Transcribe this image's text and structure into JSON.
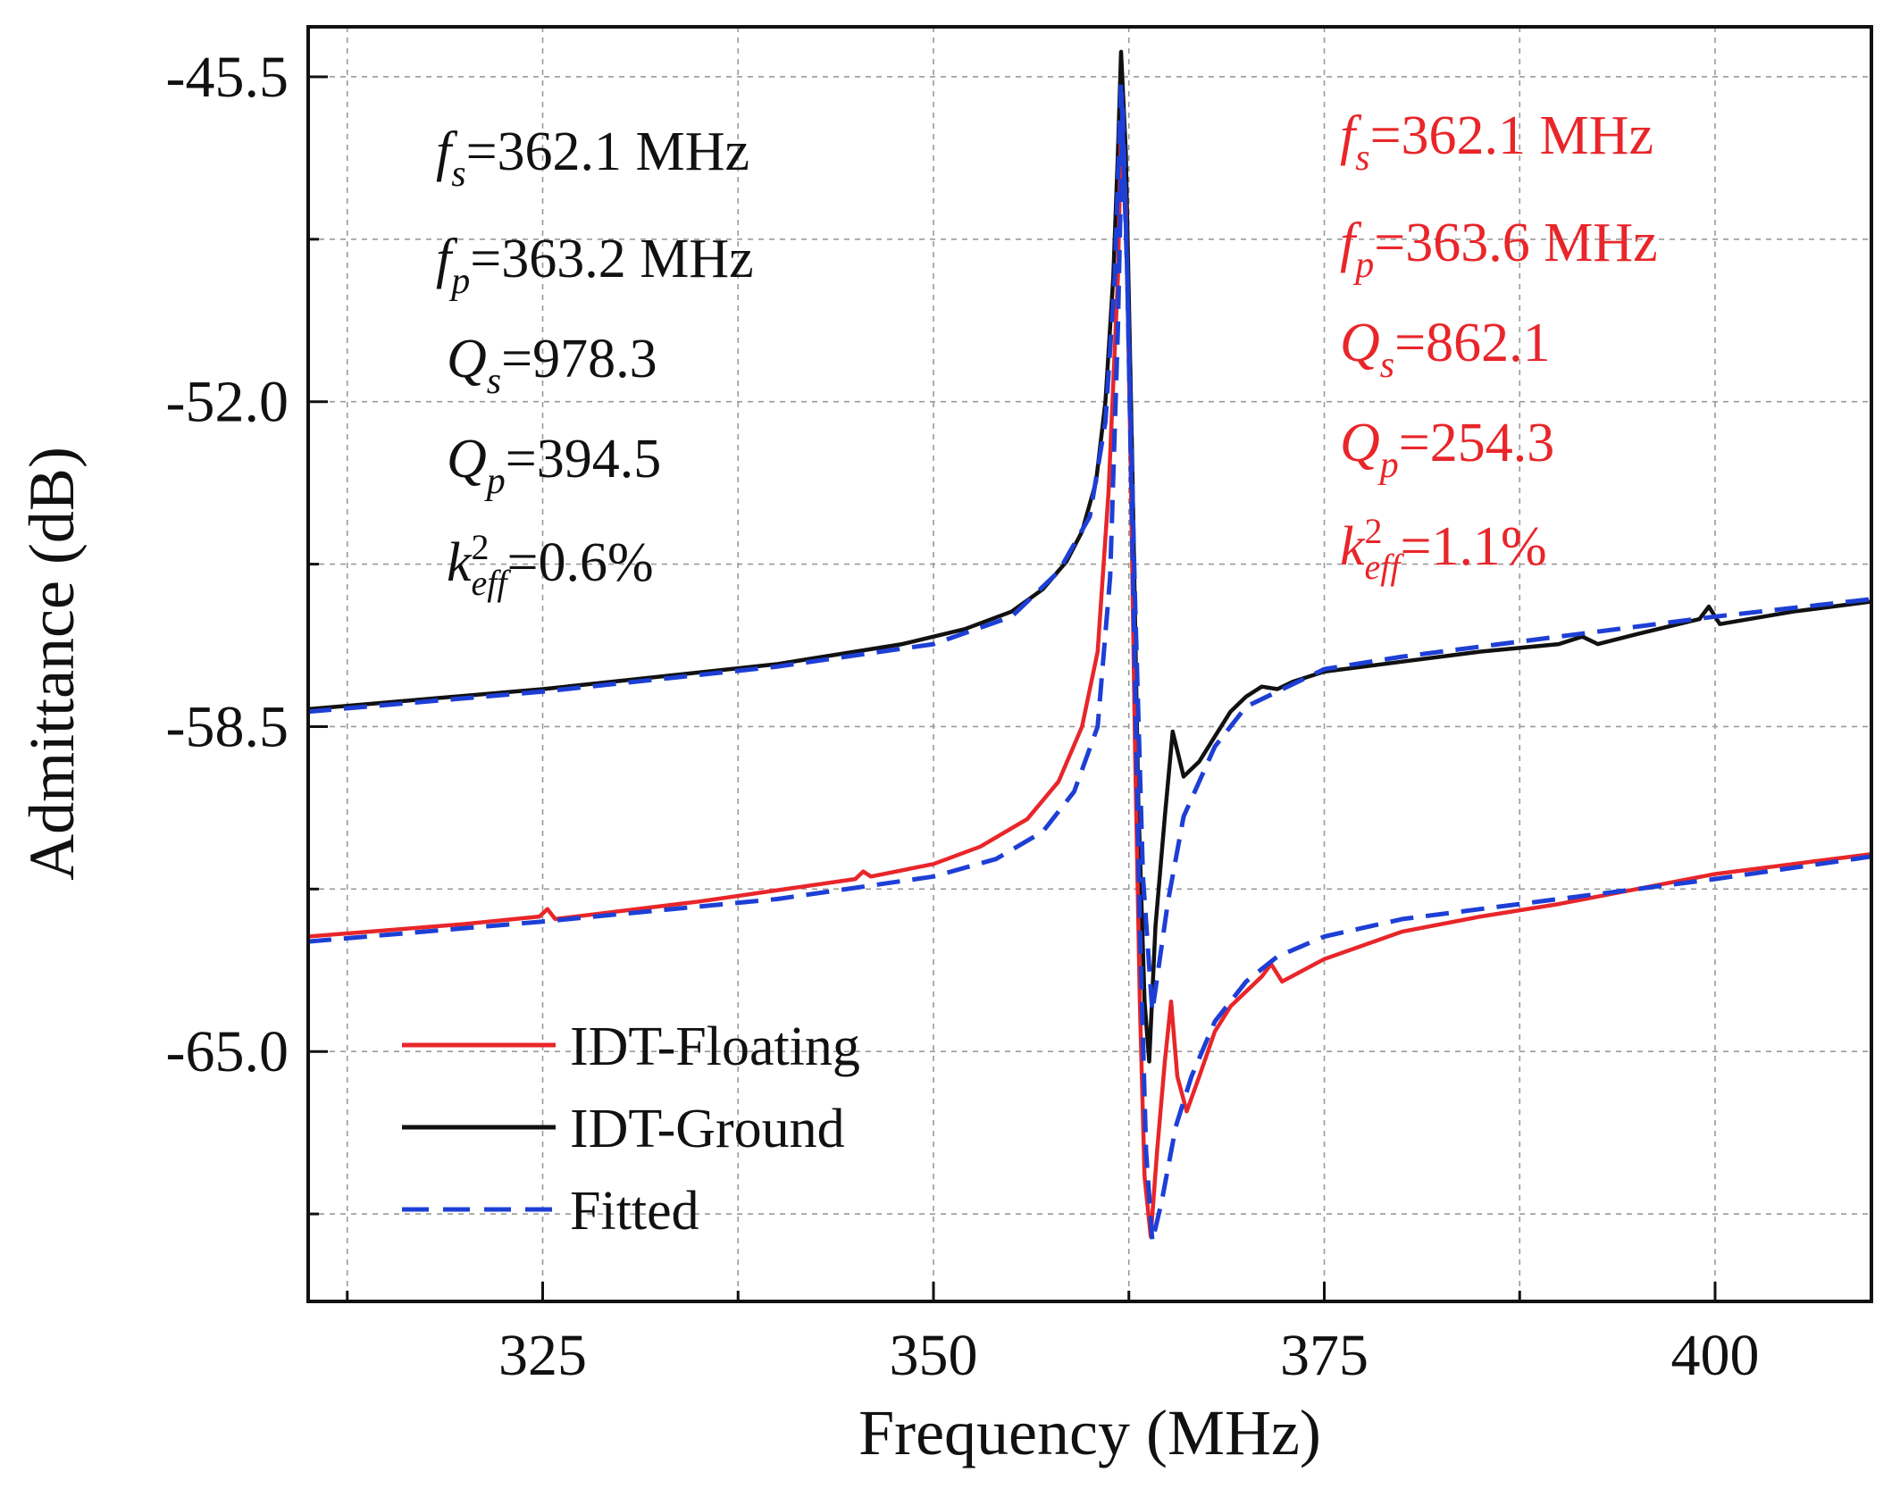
{
  "chart_data": {
    "type": "line",
    "xlabel": "Frequency (MHz)",
    "ylabel": "Admittance (dB)",
    "xlim": [
      310,
      410
    ],
    "ylim": [
      -70.0,
      -44.5
    ],
    "xticks": [
      325,
      350,
      375,
      400
    ],
    "yticks": [
      -45.5,
      -52.0,
      -58.5,
      -65.0
    ],
    "grid": true,
    "legend_position": "bottom-left",
    "colors": {
      "floating": "#e8262a",
      "ground": "#111111",
      "fitted": "#1d3fd6"
    },
    "series": [
      {
        "name": "IDT-Ground",
        "style": "solid",
        "color": "#111111",
        "points": [
          [
            310,
            -58.15
          ],
          [
            325,
            -57.75
          ],
          [
            340,
            -57.25
          ],
          [
            348,
            -56.85
          ],
          [
            352,
            -56.55
          ],
          [
            355,
            -56.2
          ],
          [
            357,
            -55.75
          ],
          [
            358.5,
            -55.2
          ],
          [
            359.5,
            -54.6
          ],
          [
            360.4,
            -53.6
          ],
          [
            361,
            -52.0
          ],
          [
            361.5,
            -49.5
          ],
          [
            361.8,
            -47.0
          ],
          [
            362.0,
            -45.0
          ],
          [
            362.3,
            -47.0
          ],
          [
            362.7,
            -53.0
          ],
          [
            363.1,
            -60.0
          ],
          [
            363.5,
            -64.0
          ],
          [
            363.8,
            -65.2
          ],
          [
            364.2,
            -62.5
          ],
          [
            364.8,
            -60.3
          ],
          [
            365.3,
            -58.6
          ],
          [
            366.0,
            -59.5
          ],
          [
            367,
            -59.2
          ],
          [
            368,
            -58.7
          ],
          [
            369,
            -58.2
          ],
          [
            370,
            -57.9
          ],
          [
            371,
            -57.7
          ],
          [
            372,
            -57.75
          ],
          [
            373,
            -57.6
          ],
          [
            375,
            -57.4
          ],
          [
            380,
            -57.2
          ],
          [
            385,
            -57.0
          ],
          [
            390,
            -56.85
          ],
          [
            391.5,
            -56.7
          ],
          [
            392.5,
            -56.85
          ],
          [
            395,
            -56.65
          ],
          [
            399,
            -56.35
          ],
          [
            399.6,
            -56.1
          ],
          [
            400.3,
            -56.45
          ],
          [
            405,
            -56.2
          ],
          [
            410,
            -56.0
          ]
        ]
      },
      {
        "name": "IDT-Floating",
        "style": "solid",
        "color": "#e8262a",
        "points": [
          [
            310,
            -62.7
          ],
          [
            320,
            -62.45
          ],
          [
            324.8,
            -62.3
          ],
          [
            325.3,
            -62.15
          ],
          [
            325.8,
            -62.35
          ],
          [
            335,
            -62.0
          ],
          [
            345,
            -61.55
          ],
          [
            345.5,
            -61.4
          ],
          [
            346,
            -61.5
          ],
          [
            350,
            -61.25
          ],
          [
            353,
            -60.9
          ],
          [
            356,
            -60.35
          ],
          [
            358,
            -59.6
          ],
          [
            359.5,
            -58.5
          ],
          [
            360.5,
            -57.0
          ],
          [
            361.2,
            -53.8
          ],
          [
            361.8,
            -49.5
          ],
          [
            362.0,
            -46.5
          ],
          [
            362.3,
            -48.0
          ],
          [
            362.6,
            -53.0
          ],
          [
            362.9,
            -59.0
          ],
          [
            363.2,
            -64.0
          ],
          [
            363.5,
            -67.5
          ],
          [
            363.9,
            -68.7
          ],
          [
            364.3,
            -67.0
          ],
          [
            364.8,
            -65.2
          ],
          [
            365.2,
            -64.0
          ],
          [
            365.6,
            -65.5
          ],
          [
            366.2,
            -66.2
          ],
          [
            367,
            -65.5
          ],
          [
            368,
            -64.6
          ],
          [
            369,
            -64.1
          ],
          [
            370,
            -63.8
          ],
          [
            371,
            -63.5
          ],
          [
            371.6,
            -63.25
          ],
          [
            372.3,
            -63.6
          ],
          [
            375,
            -63.15
          ],
          [
            380,
            -62.6
          ],
          [
            385,
            -62.3
          ],
          [
            390,
            -62.05
          ],
          [
            395,
            -61.75
          ],
          [
            400,
            -61.45
          ],
          [
            405,
            -61.25
          ],
          [
            410,
            -61.05
          ]
        ]
      },
      {
        "name": "Fitted",
        "style": "dashed",
        "color": "#1d3fd6",
        "points": [
          [
            310,
            -58.2
          ],
          [
            325,
            -57.8
          ],
          [
            340,
            -57.3
          ],
          [
            350,
            -56.85
          ],
          [
            355,
            -56.3
          ],
          [
            358,
            -55.4
          ],
          [
            360,
            -54.3
          ],
          [
            361,
            -52.4
          ],
          [
            361.6,
            -49.5
          ],
          [
            362.0,
            -45.6
          ],
          [
            362.4,
            -49.5
          ],
          [
            362.9,
            -56.0
          ],
          [
            363.4,
            -61.5
          ],
          [
            364.0,
            -64.2
          ],
          [
            365,
            -62.0
          ],
          [
            366,
            -60.3
          ],
          [
            368,
            -58.9
          ],
          [
            370,
            -58.1
          ],
          [
            375,
            -57.35
          ],
          [
            380,
            -57.1
          ],
          [
            390,
            -56.7
          ],
          [
            400,
            -56.3
          ],
          [
            410,
            -55.95
          ]
        ]
      },
      {
        "name": "Fitted",
        "style": "dashed",
        "color": "#1d3fd6",
        "points": [
          [
            310,
            -62.8
          ],
          [
            325,
            -62.4
          ],
          [
            340,
            -61.95
          ],
          [
            350,
            -61.5
          ],
          [
            354,
            -61.15
          ],
          [
            357,
            -60.6
          ],
          [
            359,
            -59.8
          ],
          [
            360.5,
            -58.5
          ],
          [
            361.3,
            -55.5
          ],
          [
            361.8,
            -50.5
          ],
          [
            362.1,
            -46.0
          ],
          [
            362.4,
            -49.5
          ],
          [
            362.8,
            -56.0
          ],
          [
            363.2,
            -62.5
          ],
          [
            363.6,
            -67.0
          ],
          [
            364.0,
            -68.8
          ],
          [
            364.6,
            -68.0
          ],
          [
            365.5,
            -66.5
          ],
          [
            366.5,
            -65.5
          ],
          [
            368,
            -64.4
          ],
          [
            370,
            -63.6
          ],
          [
            372,
            -63.1
          ],
          [
            375,
            -62.7
          ],
          [
            380,
            -62.35
          ],
          [
            390,
            -61.95
          ],
          [
            400,
            -61.55
          ],
          [
            410,
            -61.1
          ]
        ]
      }
    ],
    "annotations": {
      "ground": {
        "fs": {
          "sym": "f",
          "sub": "s",
          "val": "=362.1 MHz"
        },
        "fp": {
          "sym": "f",
          "sub": "p",
          "val": "=363.2 MHz"
        },
        "qs": {
          "sym": "Q",
          "sub": "s",
          "val": "=978.3"
        },
        "qp": {
          "sym": "Q",
          "sub": "p",
          "val": "=394.5"
        },
        "k2": {
          "sym": "k",
          "sup": "2",
          "sub": "eff",
          "val": "=0.6%"
        }
      },
      "floating": {
        "fs": {
          "sym": "f",
          "sub": "s",
          "val": "=362.1 MHz"
        },
        "fp": {
          "sym": "f",
          "sub": "p",
          "val": "=363.6 MHz"
        },
        "qs": {
          "sym": "Q",
          "sub": "s",
          "val": "=862.1"
        },
        "qp": {
          "sym": "Q",
          "sub": "p",
          "val": "=254.3"
        },
        "k2": {
          "sym": "k",
          "sup": "2",
          "sub": "eff",
          "val": "=1.1%"
        }
      }
    },
    "legend": [
      {
        "label": "IDT-Floating",
        "color": "#e8262a",
        "style": "solid"
      },
      {
        "label": "IDT-Ground",
        "color": "#111111",
        "style": "solid"
      },
      {
        "label": "Fitted",
        "color": "#1d3fd6",
        "style": "dashed"
      }
    ]
  }
}
